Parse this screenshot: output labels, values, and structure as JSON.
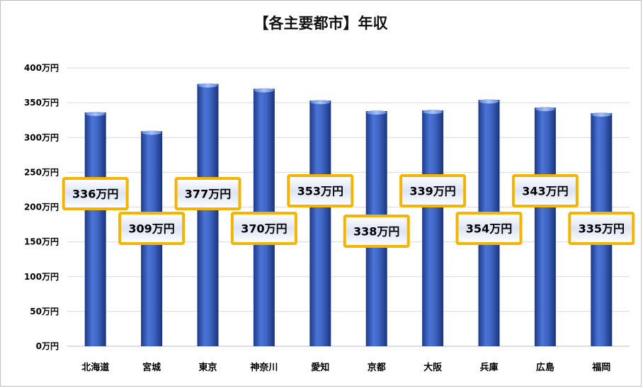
{
  "chart_data": {
    "type": "bar",
    "title": "【各主要都市】年収",
    "xlabel": "",
    "ylabel": "",
    "categories": [
      "北海道",
      "宮城",
      "東京",
      "神奈川",
      "愛知",
      "京都",
      "大阪",
      "兵庫",
      "広島",
      "福岡"
    ],
    "values": [
      336,
      309,
      377,
      370,
      353,
      338,
      339,
      354,
      343,
      335
    ],
    "data_labels": [
      "336万円",
      "309万円",
      "377万円",
      "370万円",
      "353万円",
      "338万円",
      "339万円",
      "354万円",
      "343万円",
      "335万円"
    ],
    "ylim": [
      0,
      400
    ],
    "y_ticks": [
      0,
      50,
      100,
      150,
      200,
      250,
      300,
      350,
      400
    ],
    "y_tick_labels": [
      "0万円",
      "50万円",
      "100万円",
      "150万円",
      "200万円",
      "250万円",
      "300万円",
      "350万円",
      "400万円"
    ],
    "grid": true,
    "legend": "none",
    "colors": {
      "bar": "#3f66c4",
      "label_border": "#f5b400",
      "grid": "#d9d9d9"
    }
  }
}
